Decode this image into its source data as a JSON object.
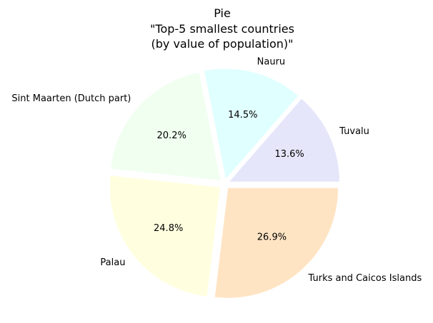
{
  "chart_data": {
    "type": "pie",
    "title_lines": [
      "Pie",
      "\"Top-5 smallest countries",
      "(by value of population)\""
    ],
    "slices": [
      {
        "label": "Tuvalu",
        "percent": 13.6,
        "percent_text": "13.6%",
        "color": "#e6e6fa"
      },
      {
        "label": "Nauru",
        "percent": 14.5,
        "percent_text": "14.5%",
        "color": "#e0ffff"
      },
      {
        "label": "Sint Maarten (Dutch part)",
        "percent": 20.2,
        "percent_text": "20.2%",
        "color": "#f0fff0"
      },
      {
        "label": "Palau",
        "percent": 24.8,
        "percent_text": "24.8%",
        "color": "#ffffe0"
      },
      {
        "label": "Turks and Caicos Islands",
        "percent": 26.9,
        "percent_text": "26.9%",
        "color": "#ffe4c4"
      }
    ],
    "start_angle_deg": 0,
    "direction": "counterclockwise",
    "exploded": true
  }
}
